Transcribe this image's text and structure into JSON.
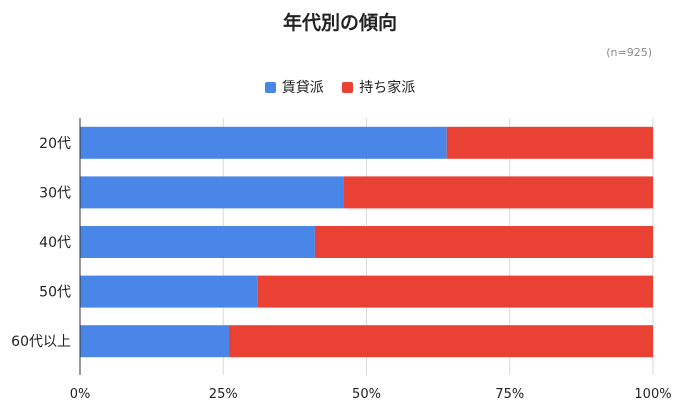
{
  "chart_data": {
    "type": "bar",
    "orientation": "horizontal",
    "stacked": "percent",
    "title": "年代別の傾向",
    "note": "(n=925)",
    "categories": [
      "20代",
      "30代",
      "40代",
      "50代",
      "60代以上"
    ],
    "series": [
      {
        "name": "賃貸派",
        "color": "#4a86e8",
        "values": [
          64,
          46,
          41,
          31,
          26
        ]
      },
      {
        "name": "持ち家派",
        "color": "#e94235",
        "values": [
          36,
          54,
          59,
          69,
          74
        ]
      }
    ],
    "xticks": [
      "0%",
      "25%",
      "50%",
      "75%",
      "100%"
    ],
    "xlim": [
      0,
      100
    ],
    "grid": true,
    "legend_position": "top"
  }
}
